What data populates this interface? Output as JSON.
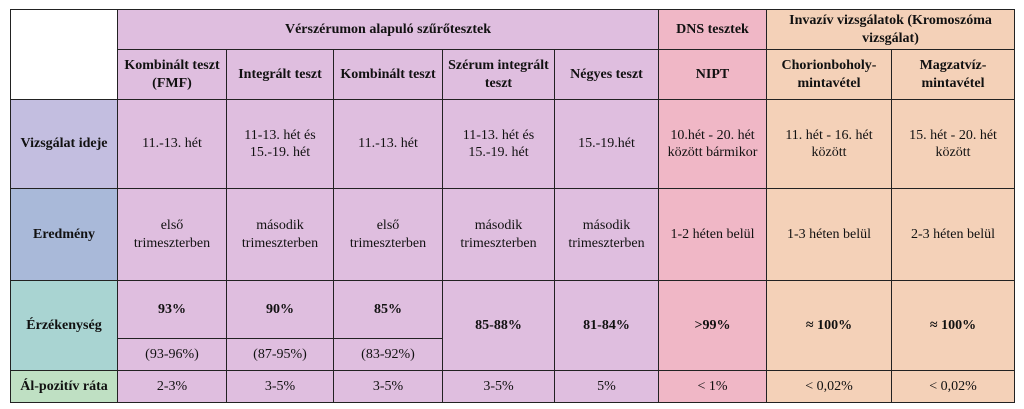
{
  "groups": {
    "blood": "Vérszérumon alapuló szűrőtesztek",
    "dna": "DNS tesztek",
    "invasive": "Invazív vizsgálatok (Kromoszóma vizsgálat)"
  },
  "columns": [
    "Kombinált teszt (FMF)",
    "Integrált teszt",
    "Kombinált teszt",
    "Szérum integrált teszt",
    "Négyes teszt",
    "NIPT",
    "Chorionboholy-mintavétel",
    "Magzatvíz-mintavétel"
  ],
  "rows": {
    "timing": {
      "label": "Vizsgálat ideje",
      "values": [
        "11.-13. hét",
        "11-13. hét és 15.-19. hét",
        "11.-13. hét",
        "11-13. hét és 15.-19. hét",
        "15.-19.hét",
        "10.hét - 20. hét között bármikor",
        "11. hét - 16. hét között",
        "15. hét - 20. hét között"
      ]
    },
    "result": {
      "label": "Eredmény",
      "values": [
        "első trimeszterben",
        "második trimeszterben",
        "első trimeszterben",
        "második trimeszterben",
        "második trimeszterben",
        "1-2 héten belül",
        "1-3 héten belül",
        "2-3 héten belül"
      ]
    },
    "sensitivity": {
      "label": "Érzékenység",
      "values": [
        "93%",
        "90%",
        "85%",
        "85-88%",
        "81-84%",
        ">99%",
        "≈ 100%",
        "≈ 100%"
      ],
      "ranges": [
        "(93-96%)",
        "(87-95%)",
        "(83-92%)"
      ]
    },
    "false_positive": {
      "label": "Ál-pozitív ráta",
      "values": [
        "2-3%",
        "3-5%",
        "3-5%",
        "3-5%",
        "5%",
        "< 1%",
        "< 0,02%",
        "< 0,02%"
      ]
    }
  },
  "colors": {
    "blood": "#dfbedf",
    "dna": "#f0b7c6",
    "invasive": "#f4d1b8",
    "row_timing": "#c3bee0",
    "row_result": "#a9b9d9",
    "row_sensitivity": "#a9d4d2",
    "row_false_positive": "#bfe0c3",
    "border": "#222222"
  }
}
